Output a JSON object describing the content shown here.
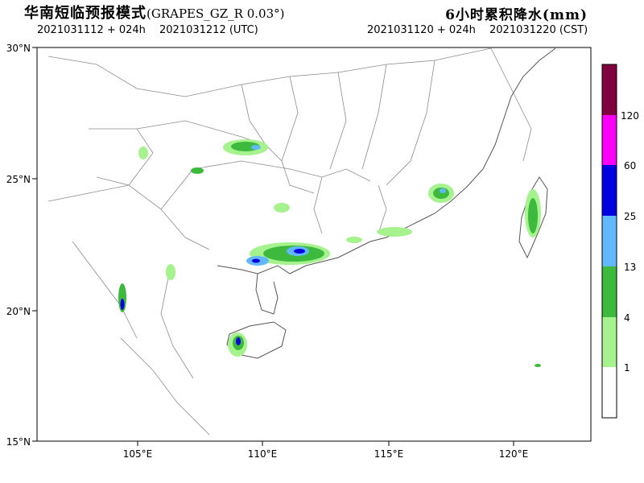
{
  "header": {
    "title_cn": "华南短临预报模式",
    "model": "(GRAPES_GZ_R 0.03°)",
    "product": "6小时累积降水(mm)",
    "init_utc": "2021031112 + 024h",
    "valid_utc": "2021031212 (UTC)",
    "init_cst": "2021031120 + 024h",
    "valid_cst": "2021031220 (CST)"
  },
  "map": {
    "lat_labels": [
      "30°N",
      "25°N",
      "20°N",
      "15°N"
    ],
    "lon_labels": [
      "105°E",
      "110°E",
      "115°E",
      "120°E"
    ]
  },
  "colorbar": {
    "levels": [
      "1",
      "4",
      "13",
      "25",
      "60",
      "120"
    ],
    "colors": [
      "#ffffff",
      "#a6f28f",
      "#3dba3d",
      "#61b8ff",
      "#0000e1",
      "#fa00fa",
      "#800040"
    ]
  }
}
